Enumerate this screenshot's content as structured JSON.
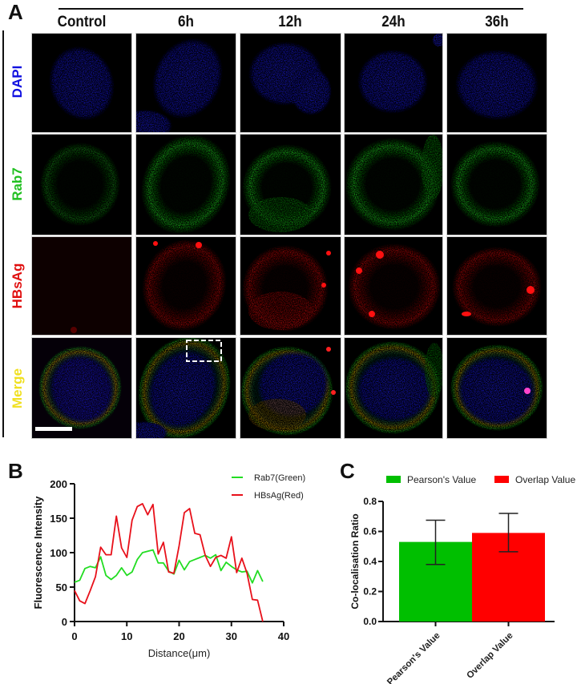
{
  "figure": {
    "panel_a": {
      "letter": "A",
      "columns": [
        "Control",
        "6h",
        "12h",
        "24h",
        "36h"
      ],
      "rows": [
        {
          "label": "DAPI",
          "color": "#1010e0"
        },
        {
          "label": "Rab7",
          "color": "#22c022"
        },
        {
          "label": "HBsAg",
          "color": "#e01010"
        },
        {
          "label": "Merge",
          "color": "#f0e020"
        }
      ],
      "scale_bar": "present (white, Control/Merge tile)",
      "roi_box": "dashed white box in 6h/Merge tile"
    },
    "panel_b": {
      "letter": "B"
    },
    "panel_c": {
      "letter": "C"
    }
  },
  "chart_data": [
    {
      "type": "line",
      "panel": "B",
      "title": "",
      "xlabel": "Distance(μm)",
      "ylabel": "Fluorescence Intensity",
      "xlim": [
        0,
        40
      ],
      "ylim": [
        0,
        200
      ],
      "xticks": [
        0,
        10,
        20,
        30,
        40
      ],
      "yticks": [
        0,
        50,
        100,
        150,
        200
      ],
      "grid": false,
      "legend_position": "top-right",
      "x": [
        0,
        1,
        2,
        3,
        4,
        5,
        6,
        7,
        8,
        9,
        10,
        11,
        12,
        13,
        14,
        15,
        16,
        17,
        18,
        19,
        20,
        21,
        22,
        23,
        24,
        25,
        26,
        27,
        28,
        29,
        30,
        31,
        32,
        33,
        34,
        35,
        36
      ],
      "series": [
        {
          "name": "Rab7(Green)",
          "color": "#22dd22",
          "values": [
            57,
            60,
            77,
            80,
            78,
            94,
            67,
            61,
            67,
            78,
            67,
            72,
            90,
            100,
            102,
            104,
            85,
            85,
            73,
            69,
            89,
            75,
            87,
            90,
            93,
            96,
            92,
            97,
            74,
            86,
            80,
            75,
            72,
            73,
            56,
            74,
            58
          ]
        },
        {
          "name": "HBsAg(Red)",
          "color": "#e8101a",
          "values": [
            45,
            30,
            26,
            45,
            65,
            108,
            97,
            97,
            153,
            107,
            93,
            147,
            167,
            171,
            155,
            170,
            98,
            115,
            72,
            70,
            110,
            158,
            164,
            128,
            126,
            96,
            80,
            93,
            96,
            92,
            123,
            71,
            92,
            70,
            32,
            31,
            0
          ]
        }
      ]
    },
    {
      "type": "bar",
      "panel": "C",
      "title": "",
      "xlabel": "",
      "ylabel": "Co-localisation Ratio",
      "ylim": [
        0,
        0.8
      ],
      "yticks": [
        "0.0",
        "0.2",
        "0.4",
        "0.6",
        "0.8"
      ],
      "grid": false,
      "legend_position": "top",
      "categories": [
        "Pearson's Value",
        "Overlap Value"
      ],
      "values": [
        0.53,
        0.59
      ],
      "error_upper": [
        0.675,
        0.72
      ],
      "error_lower": [
        0.38,
        0.465
      ],
      "colors": [
        "#00bf00",
        "#ff0000"
      ],
      "legend": [
        "Pearson's Value",
        "Overlap Value"
      ]
    }
  ]
}
